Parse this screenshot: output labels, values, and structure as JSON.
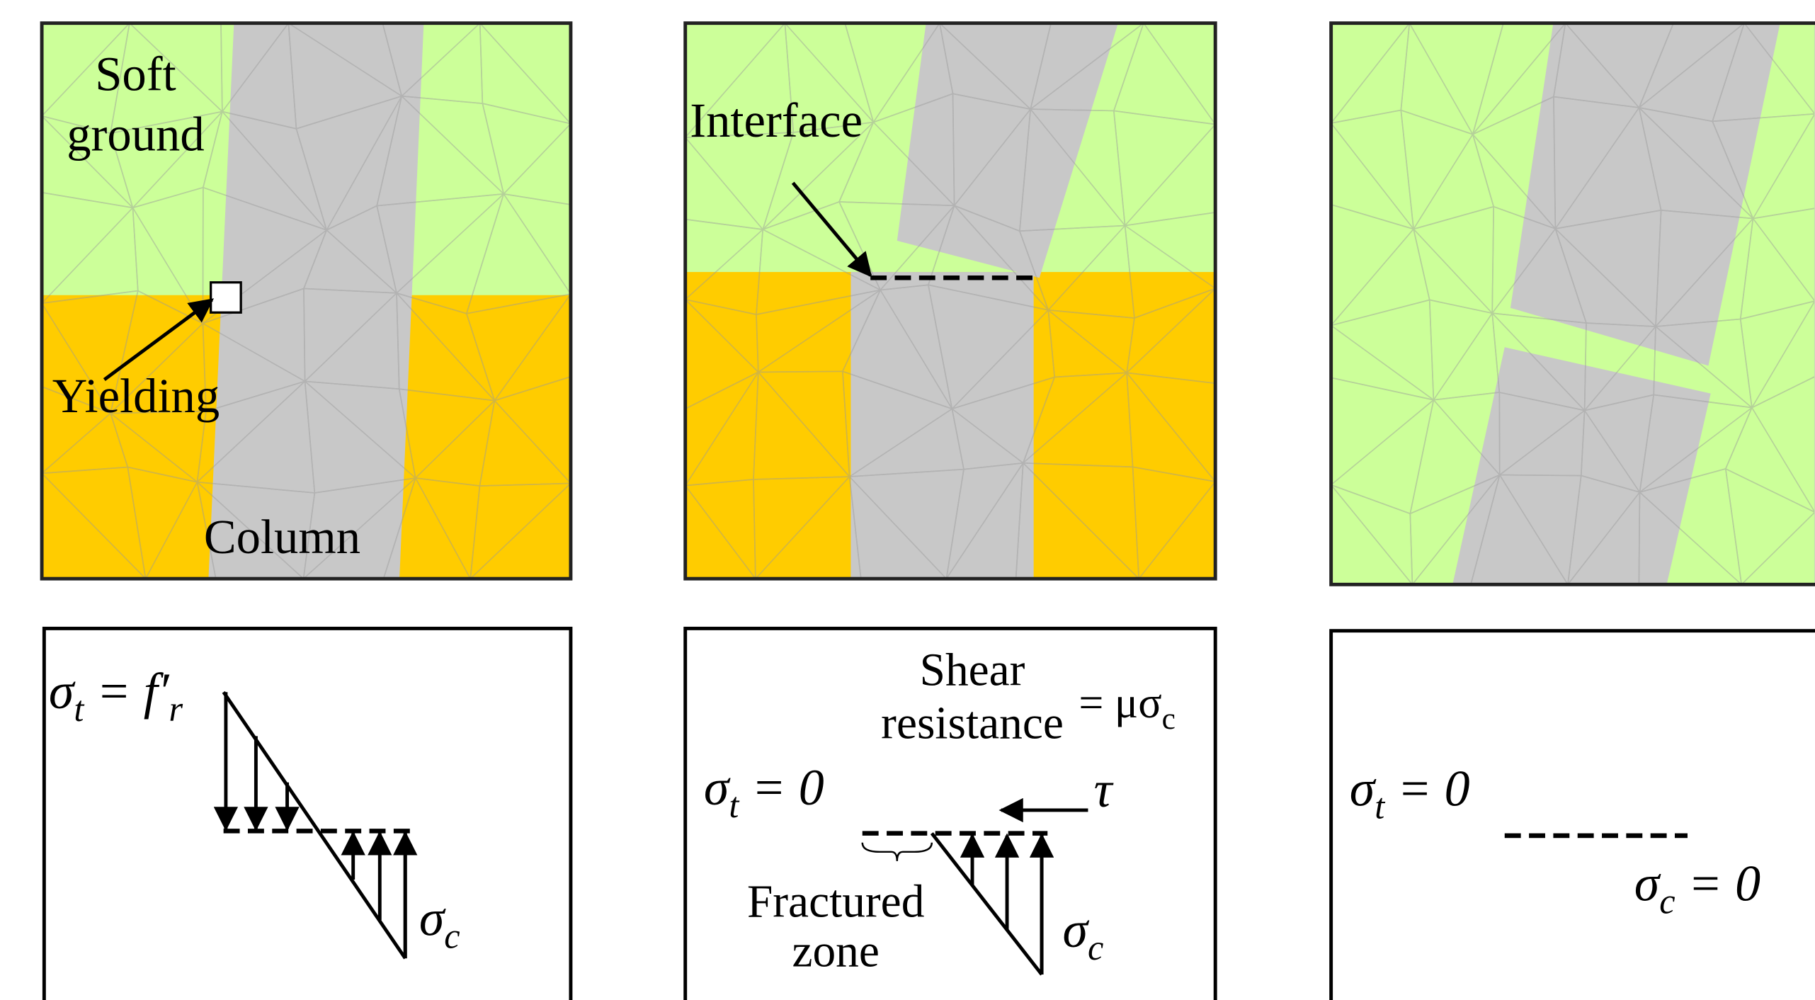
{
  "panels": [
    {
      "mesh_labels": [
        "Soft",
        "ground",
        "Yielding",
        "Column"
      ],
      "stress_labels": [
        [
          {
            "text": "σ"
          },
          {
            "sub": "t"
          },
          {
            "text": " = f′"
          },
          {
            "sub": "r"
          }
        ],
        [
          {
            "text": "σ"
          },
          {
            "sub": "c"
          }
        ]
      ]
    },
    {
      "mesh_labels": [
        "Interface"
      ],
      "stress_labels": [
        [
          {
            "text": "Shear"
          }
        ],
        [
          {
            "text": "resistance"
          }
        ],
        [
          {
            "text": "= μσ"
          },
          {
            "sub": "c"
          }
        ],
        [
          {
            "text": "σ"
          },
          {
            "sub": "t"
          },
          {
            "text": " = 0"
          }
        ],
        [
          {
            "text": "τ"
          }
        ],
        [
          {
            "text": "Fractured"
          }
        ],
        [
          {
            "text": "zone"
          }
        ],
        [
          {
            "text": "σ"
          },
          {
            "sub": "c"
          }
        ]
      ]
    },
    {
      "stress_labels": [
        [
          {
            "text": "σ"
          },
          {
            "sub": "t"
          },
          {
            "text": " = 0"
          }
        ],
        [
          {
            "text": "σ"
          },
          {
            "sub": "c"
          },
          {
            "text": " = 0"
          }
        ]
      ]
    }
  ]
}
